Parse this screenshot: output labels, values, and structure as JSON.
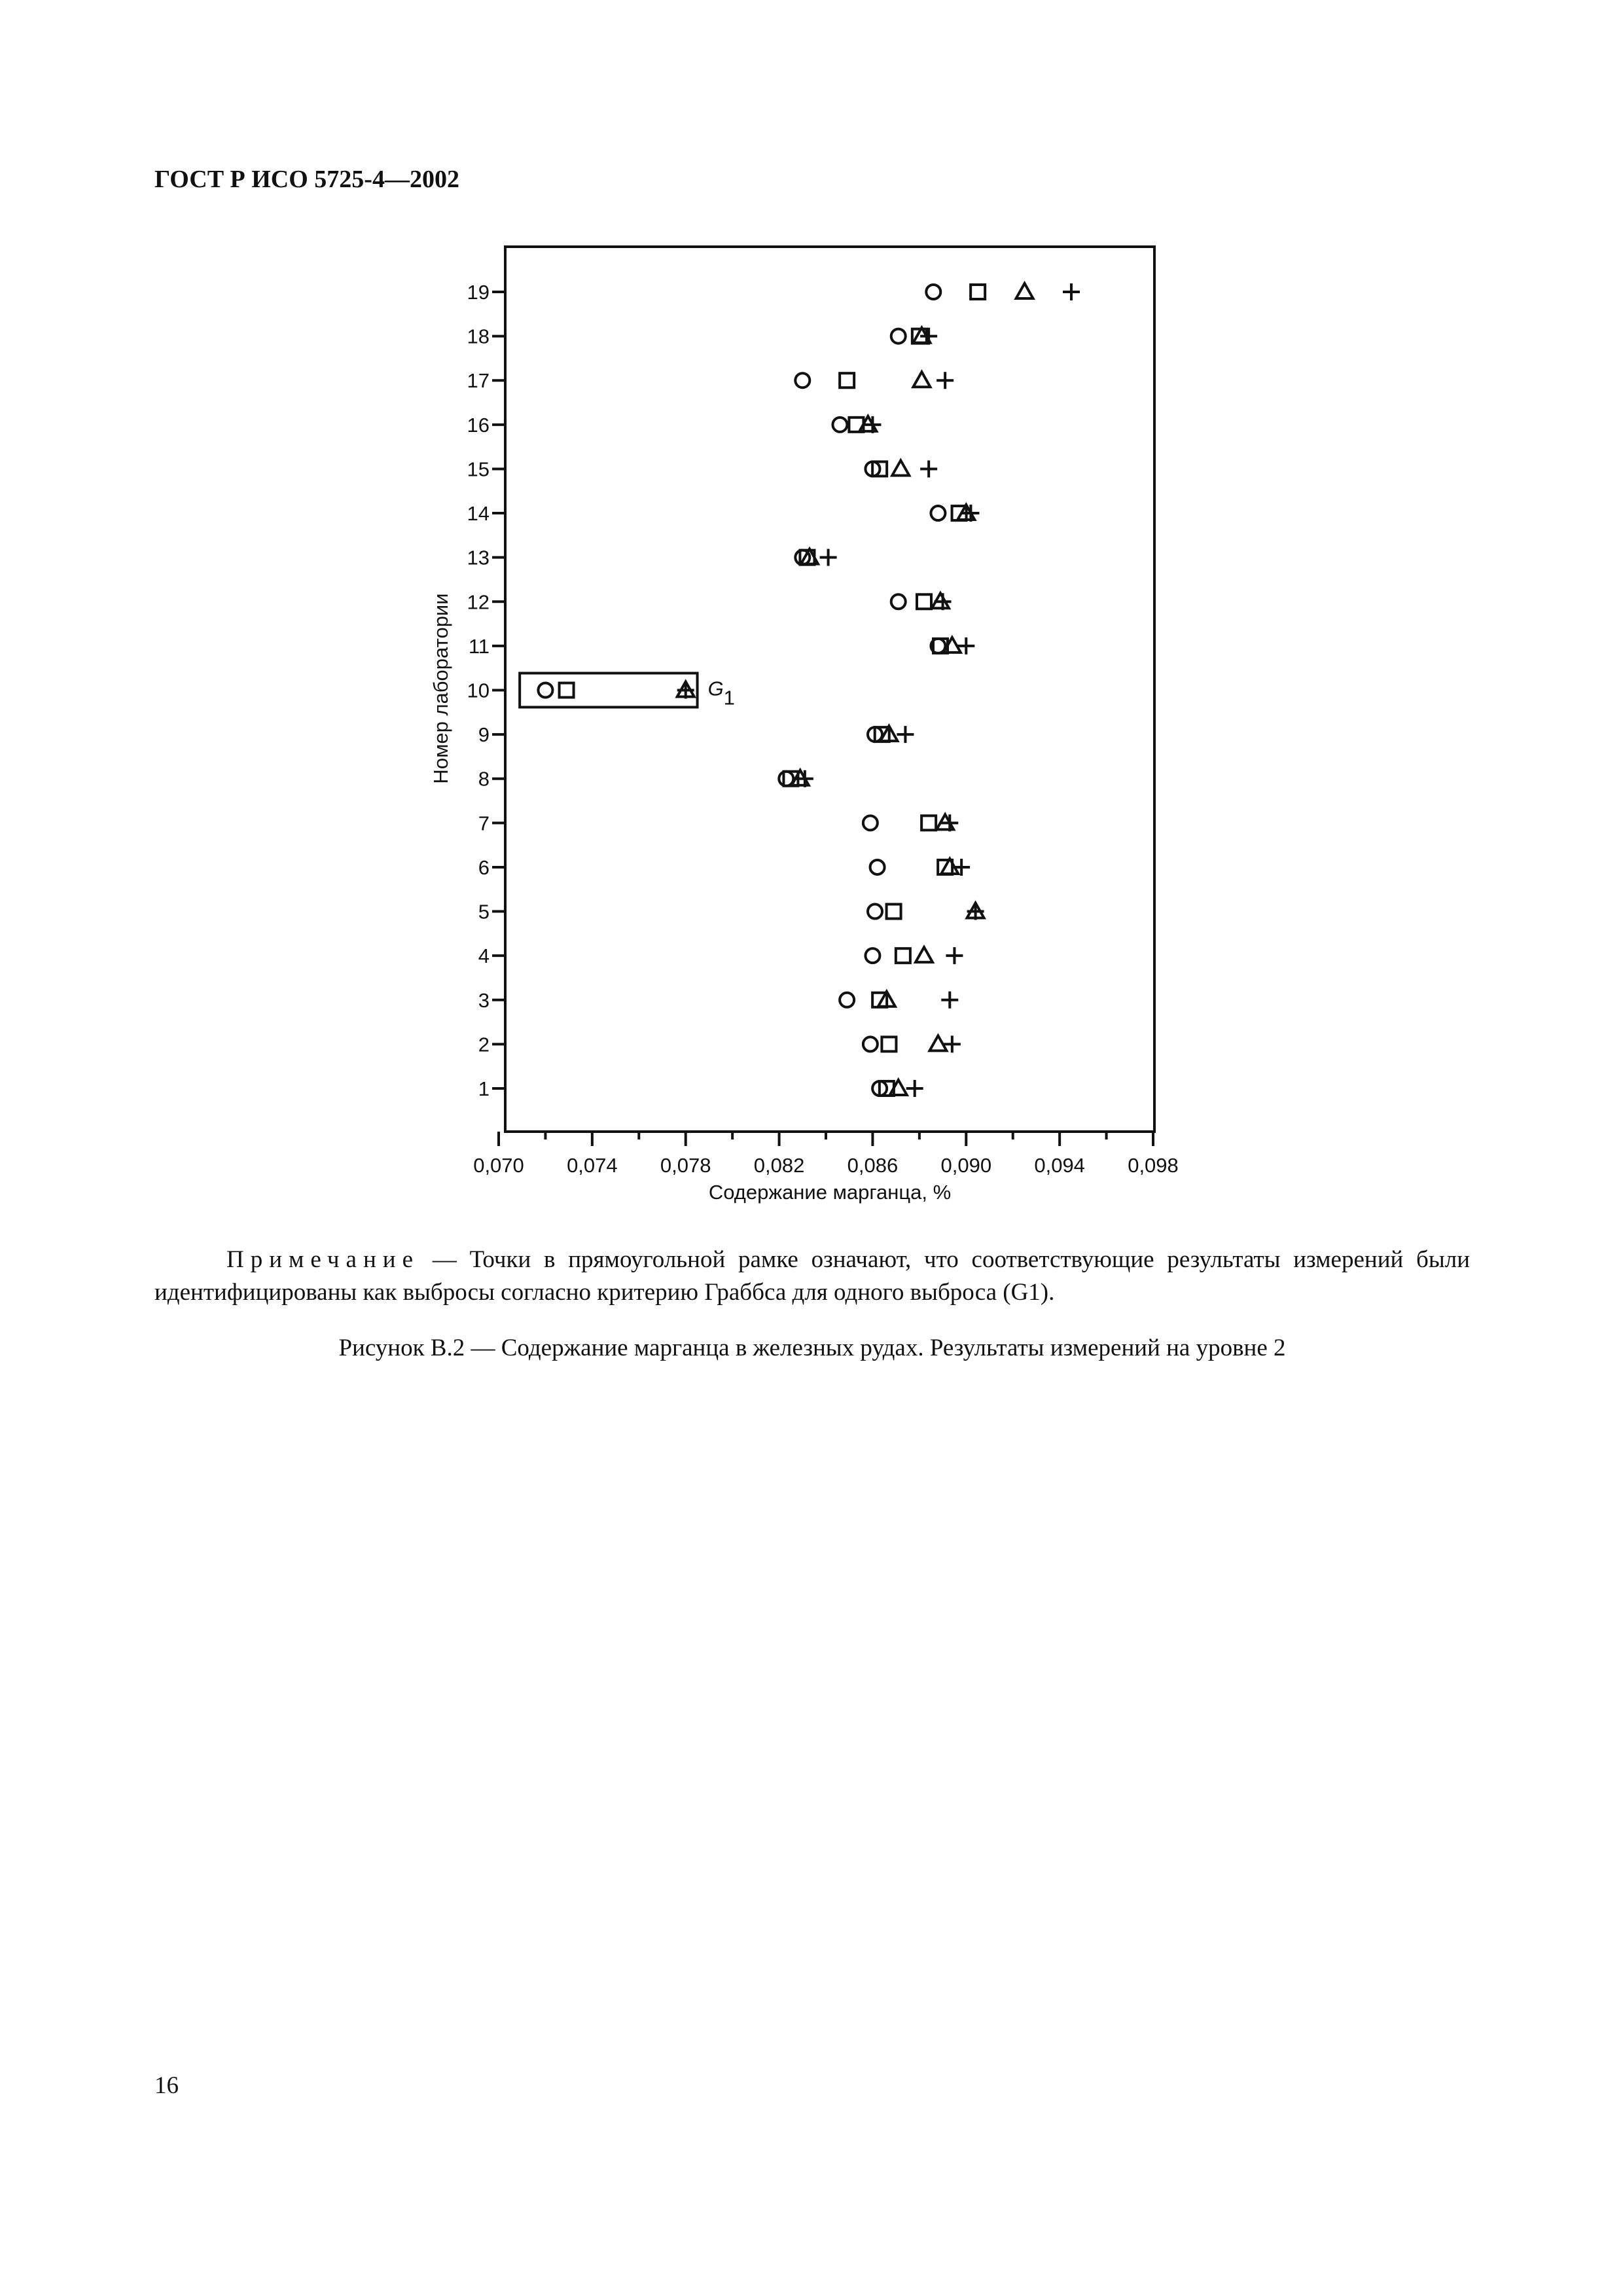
{
  "header": {
    "title": "ГОСТ Р ИСО 5725-4—2002"
  },
  "chart_data": {
    "type": "scatter",
    "xlabel": "Содержание марганца, %",
    "ylabel": "Номер лаборатории",
    "xlim": [
      0.07,
      0.098
    ],
    "ylim": [
      0,
      20
    ],
    "x_ticks": [
      "0,070",
      "0,074",
      "0,078",
      "0,082",
      "0,086",
      "0,090",
      "0,094",
      "0,098"
    ],
    "y_ticks": [
      "1",
      "2",
      "3",
      "4",
      "5",
      "6",
      "7",
      "8",
      "9",
      "10",
      "11",
      "12",
      "13",
      "14",
      "15",
      "16",
      "17",
      "18",
      "19"
    ],
    "series": [
      {
        "marker": "circle",
        "points": [
          [
            0.0863,
            1
          ],
          [
            0.0859,
            2
          ],
          [
            0.0849,
            3
          ],
          [
            0.086,
            4
          ],
          [
            0.0861,
            5
          ],
          [
            0.0862,
            6
          ],
          [
            0.0859,
            7
          ],
          [
            0.0823,
            8
          ],
          [
            0.0861,
            9
          ],
          [
            0.072,
            10
          ],
          [
            0.0888,
            11
          ],
          [
            0.0871,
            12
          ],
          [
            0.083,
            13
          ],
          [
            0.0888,
            14
          ],
          [
            0.086,
            15
          ],
          [
            0.0846,
            16
          ],
          [
            0.083,
            17
          ],
          [
            0.0871,
            18
          ],
          [
            0.0886,
            19
          ]
        ]
      },
      {
        "marker": "square",
        "points": [
          [
            0.0866,
            1
          ],
          [
            0.0867,
            2
          ],
          [
            0.0863,
            3
          ],
          [
            0.0873,
            4
          ],
          [
            0.0869,
            5
          ],
          [
            0.0891,
            6
          ],
          [
            0.0884,
            7
          ],
          [
            0.0825,
            8
          ],
          [
            0.0864,
            9
          ],
          [
            0.0729,
            10
          ],
          [
            0.0889,
            11
          ],
          [
            0.0882,
            12
          ],
          [
            0.0832,
            13
          ],
          [
            0.0897,
            14
          ],
          [
            0.0863,
            15
          ],
          [
            0.0853,
            16
          ],
          [
            0.0849,
            17
          ],
          [
            0.088,
            18
          ],
          [
            0.0905,
            19
          ]
        ]
      },
      {
        "marker": "triangle",
        "points": [
          [
            0.0871,
            1
          ],
          [
            0.0888,
            2
          ],
          [
            0.0866,
            3
          ],
          [
            0.0882,
            4
          ],
          [
            0.0904,
            5
          ],
          [
            0.0893,
            6
          ],
          [
            0.0891,
            7
          ],
          [
            0.0829,
            8
          ],
          [
            0.0867,
            9
          ],
          [
            0.078,
            10
          ],
          [
            0.0894,
            11
          ],
          [
            0.0889,
            12
          ],
          [
            0.0833,
            13
          ],
          [
            0.09,
            14
          ],
          [
            0.0872,
            15
          ],
          [
            0.0858,
            16
          ],
          [
            0.0881,
            17
          ],
          [
            0.0881,
            18
          ],
          [
            0.0925,
            19
          ]
        ]
      },
      {
        "marker": "plus",
        "points": [
          [
            0.0878,
            1
          ],
          [
            0.0894,
            2
          ],
          [
            0.0893,
            3
          ],
          [
            0.0895,
            4
          ],
          [
            0.0904,
            5
          ],
          [
            0.0898,
            6
          ],
          [
            0.0893,
            7
          ],
          [
            0.0831,
            8
          ],
          [
            0.0874,
            9
          ],
          [
            0.078,
            10
          ],
          [
            0.09,
            11
          ],
          [
            0.089,
            12
          ],
          [
            0.0841,
            13
          ],
          [
            0.0902,
            14
          ],
          [
            0.0884,
            15
          ],
          [
            0.086,
            16
          ],
          [
            0.0891,
            17
          ],
          [
            0.0884,
            18
          ],
          [
            0.0945,
            19
          ]
        ]
      }
    ],
    "outlier_box": {
      "lab": 10,
      "x_range": [
        0.0709,
        0.0785
      ],
      "label": "G",
      "label_sub": "1"
    }
  },
  "note": {
    "label": "Примечание",
    "text": " — Точки в прямоугольной рамке означают, что соответствующие результаты измерений были идентифицированы как выбросы согласно критерию Граббса для одного выброса (G1)."
  },
  "caption": "Рисунок В.2 — Содержание марганца в железных рудах. Результаты измерений на уровне 2",
  "page_number": "16"
}
